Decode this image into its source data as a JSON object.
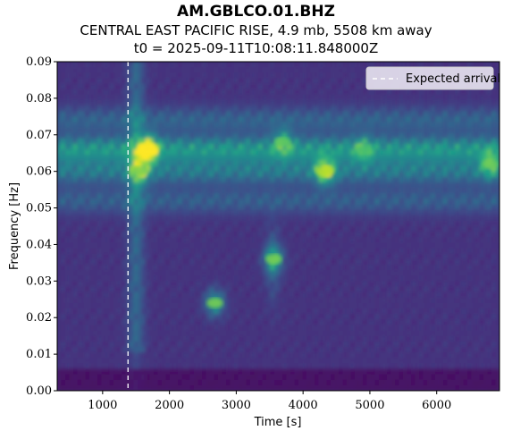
{
  "title": "AM.GBLCO.01.BHZ",
  "subtitle": "CENTRAL EAST PACIFIC RISE, 4.9 mb, 5508 km away",
  "t0_line": "t0 = 2025-09-11T10:08:11.848000Z",
  "chart_data": {
    "type": "heatmap",
    "colormap": "viridis",
    "xlabel": "Time [s]",
    "ylabel": "Frequency [Hz]",
    "xlim": [
      320,
      6940
    ],
    "ylim": [
      0,
      0.09
    ],
    "xticks": [
      1000,
      2000,
      3000,
      4000,
      5000,
      6000
    ],
    "yticks": [
      0.0,
      0.01,
      0.02,
      0.03,
      0.04,
      0.05,
      0.06,
      0.07,
      0.08,
      0.09
    ],
    "ytick_labels": [
      "0.00",
      "0.01",
      "0.02",
      "0.03",
      "0.04",
      "0.05",
      "0.06",
      "0.07",
      "0.08",
      "0.09"
    ],
    "expected_arrival_s": 1380,
    "legend": {
      "label": "Expected arrival",
      "placement": "upper right",
      "line_color": "#ffffff",
      "line_style": "dashed"
    },
    "energy_peaks": [
      {
        "time_s": 1680,
        "freq_hz": 0.066,
        "intensity": 1.0
      },
      {
        "time_s": 1560,
        "freq_hz": 0.06,
        "intensity": 0.55
      },
      {
        "time_s": 4330,
        "freq_hz": 0.06,
        "intensity": 0.75
      },
      {
        "time_s": 3560,
        "freq_hz": 0.036,
        "intensity": 0.55
      },
      {
        "time_s": 2680,
        "freq_hz": 0.024,
        "intensity": 0.55
      },
      {
        "time_s": 3700,
        "freq_hz": 0.068,
        "intensity": 0.45
      },
      {
        "time_s": 6800,
        "freq_hz": 0.062,
        "intensity": 0.5
      },
      {
        "time_s": 4900,
        "freq_hz": 0.066,
        "intensity": 0.35
      }
    ],
    "energy_bands": [
      {
        "freq_hz": 0.066,
        "level": 0.45
      },
      {
        "freq_hz": 0.06,
        "level": 0.3
      },
      {
        "freq_hz": 0.074,
        "level": 0.2
      },
      {
        "freq_hz": 0.052,
        "level": 0.18
      }
    ],
    "low_freq_cutoff_hz": 0.006
  }
}
